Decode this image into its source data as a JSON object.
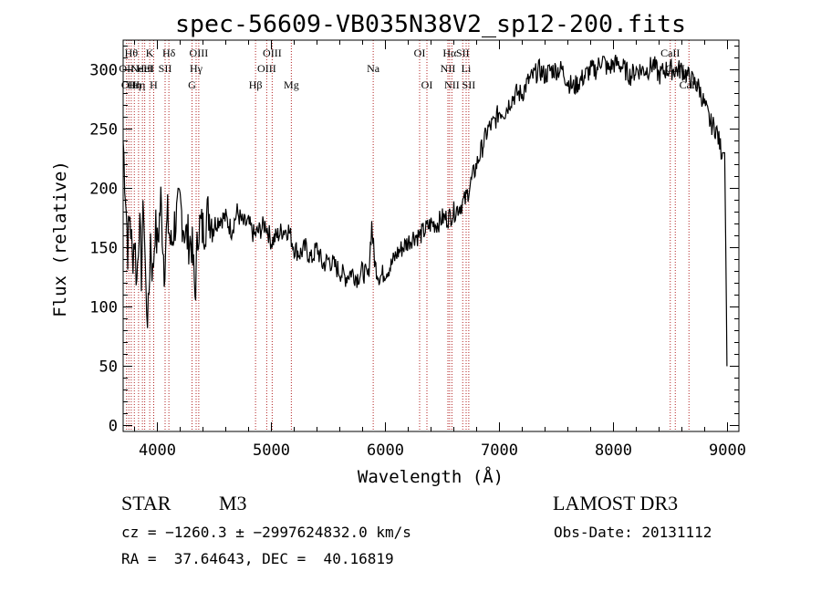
{
  "chart_data": {
    "type": "line",
    "title": "spec-56609-VB035N38V2_sp12-200.fits",
    "xlabel": "Wavelength (Å)",
    "ylabel": "Flux (relative)",
    "xlim": [
      3700,
      9100
    ],
    "ylim": [
      -5,
      325
    ],
    "xticks": [
      "4000",
      "5000",
      "6000",
      "7000",
      "8000",
      "9000"
    ],
    "xtick_values": [
      4000,
      5000,
      6000,
      7000,
      8000,
      9000
    ],
    "yticks": [
      "0",
      "50",
      "100",
      "150",
      "200",
      "250",
      "300"
    ],
    "ytick_values": [
      0,
      50,
      100,
      150,
      200,
      250,
      300
    ],
    "grid": false,
    "series": [
      {
        "x": [
          3700,
          3720,
          3740,
          3760,
          3780,
          3800,
          3820,
          3840,
          3860,
          3880,
          3900,
          3920,
          3940,
          3960,
          3980,
          4000,
          4030,
          4060,
          4090,
          4120,
          4150,
          4200,
          4250,
          4300,
          4330,
          4360,
          4400,
          4450,
          4500,
          4550,
          4600,
          4650,
          4700,
          4750,
          4800,
          4850,
          4900,
          4950,
          5000,
          5050,
          5100,
          5150,
          5200,
          5250,
          5300,
          5350,
          5400,
          5450,
          5500,
          5550,
          5600,
          5650,
          5700,
          5750,
          5800,
          5850,
          5880,
          5895,
          5910,
          5950,
          6000,
          6050,
          6100,
          6150,
          6200,
          6250,
          6300,
          6350,
          6400,
          6450,
          6500,
          6550,
          6600,
          6650,
          6700,
          6750,
          6800,
          6850,
          6900,
          6950,
          7000,
          7050,
          7100,
          7150,
          7200,
          7250,
          7300,
          7350,
          7400,
          7450,
          7500,
          7550,
          7600,
          7650,
          7700,
          7750,
          7800,
          7850,
          7900,
          7950,
          8000,
          8050,
          8100,
          8150,
          8200,
          8250,
          8300,
          8350,
          8400,
          8450,
          8500,
          8550,
          8600,
          8650,
          8700,
          8750,
          8800,
          8850,
          8900,
          8950,
          8975,
          8985,
          8995
        ],
        "y": [
          240,
          200,
          150,
          180,
          140,
          160,
          120,
          175,
          130,
          190,
          110,
          90,
          160,
          125,
          170,
          150,
          190,
          135,
          175,
          150,
          170,
          185,
          160,
          155,
          110,
          170,
          165,
          180,
          170,
          175,
          175,
          165,
          180,
          170,
          170,
          160,
          165,
          170,
          155,
          160,
          165,
          165,
          150,
          145,
          150,
          140,
          150,
          135,
          140,
          135,
          130,
          125,
          130,
          125,
          130,
          125,
          170,
          150,
          135,
          125,
          130,
          135,
          145,
          150,
          155,
          160,
          160,
          165,
          170,
          170,
          175,
          175,
          180,
          185,
          190,
          205,
          220,
          235,
          250,
          255,
          265,
          265,
          275,
          280,
          280,
          290,
          295,
          300,
          295,
          300,
          300,
          300,
          290,
          285,
          290,
          295,
          300,
          300,
          310,
          300,
          305,
          305,
          300,
          295,
          300,
          300,
          300,
          305,
          295,
          300,
          300,
          300,
          300,
          295,
          290,
          285,
          270,
          255,
          250,
          230,
          230,
          150,
          50
        ]
      }
    ],
    "line_markers": [
      {
        "wave": 3730,
        "label": "OII",
        "row": 2
      },
      {
        "wave": 3750,
        "label": "OII",
        "row": 3
      },
      {
        "wave": 3771,
        "label": "Hθ",
        "row": 1
      },
      {
        "wave": 3798,
        "label": "Hη",
        "row": 3
      },
      {
        "wave": 3835,
        "label": "Hη",
        "row": 3
      },
      {
        "wave": 3869,
        "label": "NeIII",
        "row": 2
      },
      {
        "wave": 3889,
        "label": "HeI",
        "row": 2
      },
      {
        "wave": 3933,
        "label": "K",
        "row": 1
      },
      {
        "wave": 3968,
        "label": "H",
        "row": 3
      },
      {
        "wave": 4068,
        "label": "SII",
        "row": 2
      },
      {
        "wave": 4101,
        "label": "Hδ",
        "row": 1
      },
      {
        "wave": 4304,
        "label": "G",
        "row": 3
      },
      {
        "wave": 4340,
        "label": "Hγ",
        "row": 2
      },
      {
        "wave": 4363,
        "label": "OIII",
        "row": 1
      },
      {
        "wave": 4861,
        "label": "Hβ",
        "row": 3
      },
      {
        "wave": 4959,
        "label": "OIII",
        "row": 2
      },
      {
        "wave": 5007,
        "label": "OIII",
        "row": 1
      },
      {
        "wave": 5175,
        "label": "Mg",
        "row": 3
      },
      {
        "wave": 5893,
        "label": "Na",
        "row": 2
      },
      {
        "wave": 6300,
        "label": "OI",
        "row": 1
      },
      {
        "wave": 6364,
        "label": "OI",
        "row": 3
      },
      {
        "wave": 6548,
        "label": "NII",
        "row": 2
      },
      {
        "wave": 6563,
        "label": "Hα",
        "row": 1
      },
      {
        "wave": 6583,
        "label": "NII",
        "row": 3
      },
      {
        "wave": 6678,
        "label": "SII",
        "row": 1
      },
      {
        "wave": 6708,
        "label": "Li",
        "row": 2
      },
      {
        "wave": 6731,
        "label": "SII",
        "row": 3
      },
      {
        "wave": 8498,
        "label": "CaII",
        "row": 1
      },
      {
        "wave": 8542,
        "label": "CaII",
        "row": 2
      },
      {
        "wave": 8662,
        "label": "CaII",
        "row": 3
      }
    ]
  },
  "footer": {
    "object_class": "STAR",
    "subclass": "M3",
    "survey": "LAMOST DR3",
    "cz": "cz = −1260.3 ± −2997624832.0 km/s",
    "obs_date": "Obs-Date: 20131112",
    "radec": "RA =  37.64643, DEC =  40.16819"
  },
  "colors": {
    "background": "#ffffff",
    "axes": "#000000",
    "spectrum": "#000000",
    "line_markers": "#b22222"
  }
}
